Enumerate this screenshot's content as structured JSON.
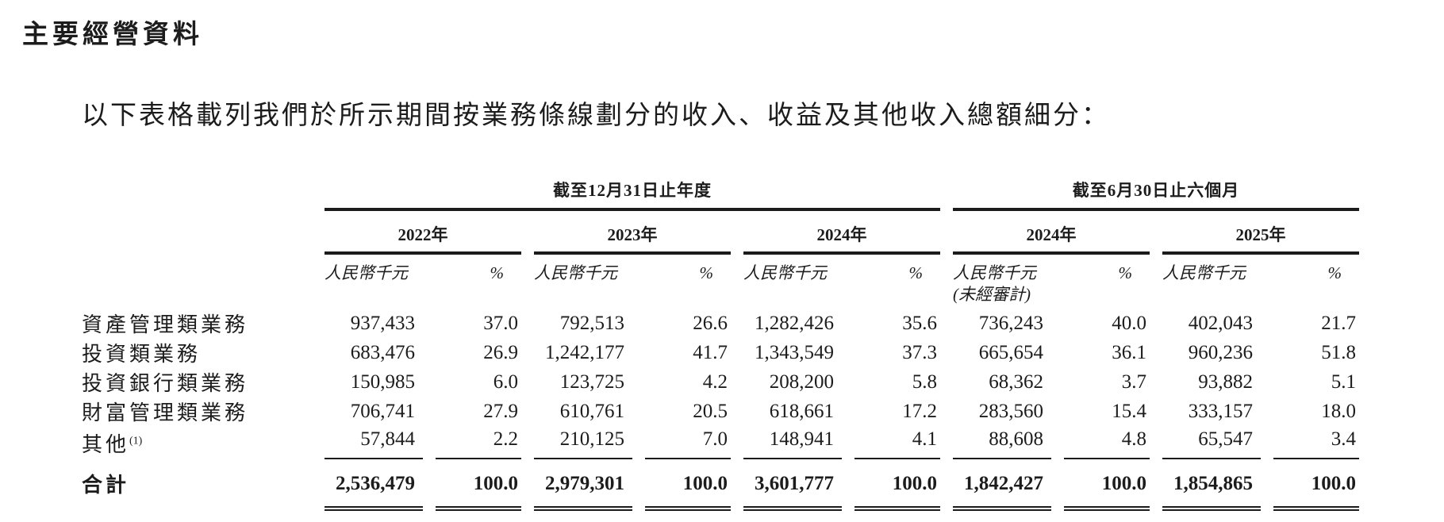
{
  "document": {
    "title": "主要經營資料",
    "intro": "以下表格載列我們於所示期間按業務條線劃分的收入、收益及其他收入總額細分："
  },
  "table": {
    "period_groups": {
      "annual": "截至12月31日止年度",
      "interim": "截至6月30日止六個月"
    },
    "year_headers": [
      "2022年",
      "2023年",
      "2024年",
      "2024年",
      "2025年"
    ],
    "unit_label": "人民幣千元",
    "percent_label": "%",
    "unaudited_label": "(未經審計)",
    "rows": [
      {
        "label": "資產管理類業務",
        "footnote": "",
        "values": [
          "937,433",
          "37.0",
          "792,513",
          "26.6",
          "1,282,426",
          "35.6",
          "736,243",
          "40.0",
          "402,043",
          "21.7"
        ]
      },
      {
        "label": "投資類業務",
        "footnote": "",
        "values": [
          "683,476",
          "26.9",
          "1,242,177",
          "41.7",
          "1,343,549",
          "37.3",
          "665,654",
          "36.1",
          "960,236",
          "51.8"
        ]
      },
      {
        "label": "投資銀行類業務",
        "footnote": "",
        "values": [
          "150,985",
          "6.0",
          "123,725",
          "4.2",
          "208,200",
          "5.8",
          "68,362",
          "3.7",
          "93,882",
          "5.1"
        ]
      },
      {
        "label": "財富管理類業務",
        "footnote": "",
        "values": [
          "706,741",
          "27.9",
          "610,761",
          "20.5",
          "618,661",
          "17.2",
          "283,560",
          "15.4",
          "333,157",
          "18.0"
        ]
      },
      {
        "label": "其他",
        "footnote": "(1)",
        "values": [
          "57,844",
          "2.2",
          "210,125",
          "7.0",
          "148,941",
          "4.1",
          "88,608",
          "4.8",
          "65,547",
          "3.4"
        ]
      }
    ],
    "total_row": {
      "label": "合計",
      "values": [
        "2,536,479",
        "100.0",
        "2,979,301",
        "100.0",
        "3,601,777",
        "100.0",
        "1,842,427",
        "100.0",
        "1,854,865",
        "100.0"
      ]
    }
  }
}
